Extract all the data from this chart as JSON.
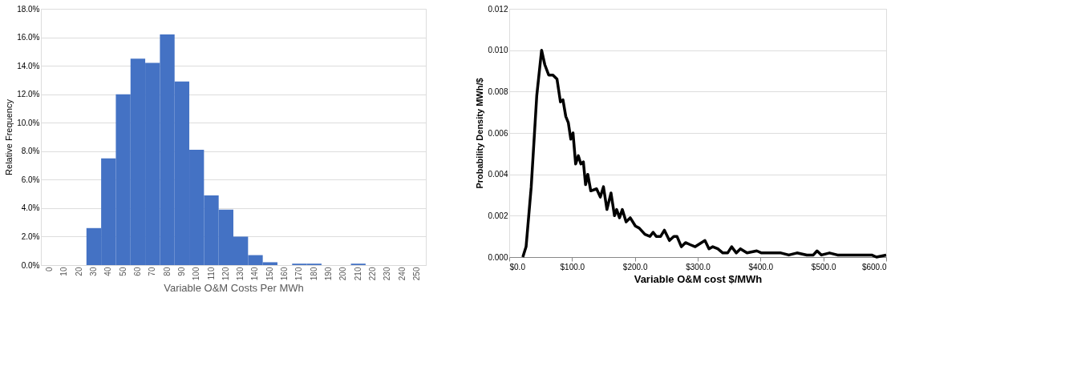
{
  "chart_data": [
    {
      "type": "bar",
      "xlabel": "Variable O&M Costs Per MWh",
      "ylabel": "Relative Frequency",
      "categories": [
        "0",
        "10",
        "20",
        "30",
        "40",
        "50",
        "60",
        "70",
        "80",
        "90",
        "100",
        "110",
        "120",
        "130",
        "140",
        "150",
        "160",
        "170",
        "180",
        "190",
        "200",
        "210",
        "220",
        "230",
        "240",
        "250"
      ],
      "values": [
        0,
        0,
        0,
        2.6,
        7.5,
        12.0,
        14.5,
        14.2,
        16.2,
        12.9,
        8.1,
        4.9,
        3.9,
        2.0,
        0.7,
        0.2,
        0,
        0.1,
        0.1,
        0,
        0,
        0.1,
        0,
        0,
        0,
        0
      ],
      "color": "#4472c4",
      "ylim": [
        0,
        18
      ],
      "yticks": [
        {
          "value": 0,
          "label": "0.0%"
        },
        {
          "value": 2,
          "label": "2.0%"
        },
        {
          "value": 4,
          "label": "4.0%"
        },
        {
          "value": 6,
          "label": "6.0%"
        },
        {
          "value": 8,
          "label": "8.0%"
        },
        {
          "value": 10,
          "label": "10.0%"
        },
        {
          "value": 12,
          "label": "12.0%"
        },
        {
          "value": 14,
          "label": "14.0%"
        },
        {
          "value": 16,
          "label": "16.0%"
        },
        {
          "value": 18,
          "label": "18.0%"
        }
      ],
      "grid": "y"
    },
    {
      "type": "line",
      "xlabel": "Variable O&M cost $/MWh",
      "ylabel": "Probability Density  MWh/$",
      "x": [
        21.6,
        26.8,
        35,
        43.8,
        51.5,
        56.6,
        62.8,
        69.5,
        76,
        81.5,
        85.5,
        90,
        94,
        98,
        101.5,
        105.7,
        110,
        114,
        118,
        121.5,
        125,
        129.8,
        139,
        145,
        150,
        155.5,
        162,
        167.5,
        171,
        175.5,
        180,
        186,
        192.6,
        200.8,
        207,
        216,
        224,
        229,
        234,
        241,
        247,
        255,
        262,
        267,
        274,
        280.6,
        288,
        296,
        306,
        311.5,
        318,
        324,
        332,
        340,
        347.6,
        354,
        361.5,
        368,
        378.5,
        394,
        401.6,
        412,
        420,
        432.5,
        445,
        458,
        473.7,
        484,
        490,
        497,
        509.8,
        522.6,
        533,
        546,
        556,
        566.5,
        577,
        584.6,
        600
      ],
      "values": [
        0,
        0.0005,
        0.0034,
        0.0078,
        0.01,
        0.0093,
        0.0088,
        0.0088,
        0.0086,
        0.0075,
        0.0076,
        0.0068,
        0.0065,
        0.0057,
        0.006,
        0.0045,
        0.0049,
        0.0045,
        0.0046,
        0.0035,
        0.004,
        0.0032,
        0.0033,
        0.0029,
        0.0034,
        0.0023,
        0.0031,
        0.002,
        0.0023,
        0.0019,
        0.0023,
        0.0017,
        0.0019,
        0.0015,
        0.0014,
        0.0011,
        0.001,
        0.0012,
        0.001,
        0.001,
        0.0013,
        0.0008,
        0.001,
        0.001,
        0.0005,
        0.0007,
        0.0006,
        0.0005,
        0.0007,
        0.0008,
        0.0004,
        0.0005,
        0.0004,
        0.0002,
        0.0002,
        0.0005,
        0.0002,
        0.0004,
        0.0002,
        0.0003,
        0.0002,
        0.0002,
        0.0002,
        0.0002,
        0.0001,
        0.0002,
        0.0001,
        0.0001,
        0.0003,
        0.0001,
        0.0002,
        0.0001,
        0.0001,
        0.0001,
        0.0001,
        0.0001,
        0.0001,
        0.0,
        0.0001
      ],
      "color": "#000000",
      "xlim": [
        0,
        600
      ],
      "xticks": [
        {
          "value": 0,
          "label": "$0.0"
        },
        {
          "value": 100,
          "label": "$100.0"
        },
        {
          "value": 200,
          "label": "$200.0"
        },
        {
          "value": 300,
          "label": "$300.0"
        },
        {
          "value": 400,
          "label": "$400.0"
        },
        {
          "value": 500,
          "label": "$500.0"
        },
        {
          "value": 600,
          "label": "$600.0"
        }
      ],
      "ylim": [
        0,
        0.012
      ],
      "yticks": [
        {
          "value": 0,
          "label": "0.000"
        },
        {
          "value": 0.002,
          "label": "0.002"
        },
        {
          "value": 0.004,
          "label": "0.004"
        },
        {
          "value": 0.006,
          "label": "0.006"
        },
        {
          "value": 0.008,
          "label": "0.008"
        },
        {
          "value": 0.01,
          "label": "0.010"
        },
        {
          "value": 0.012,
          "label": "0.012"
        }
      ],
      "grid": "y",
      "marker": "none",
      "line_style": "solid"
    }
  ]
}
